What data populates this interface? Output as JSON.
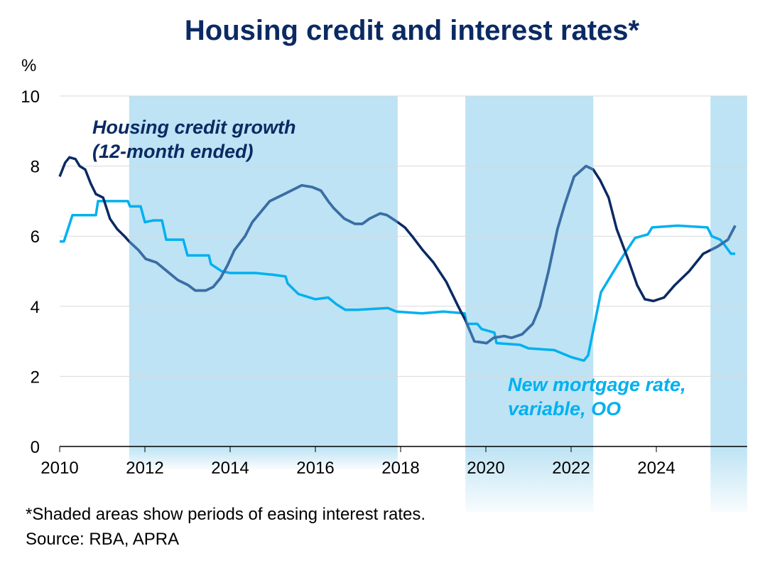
{
  "chart_data": {
    "type": "line",
    "title": "Housing credit and interest rates*",
    "ylabel": "%",
    "xlim": [
      2010,
      2026.13
    ],
    "ylim": [
      0,
      10
    ],
    "x_ticks": [
      "2010",
      "2012",
      "2014",
      "2016",
      "2018",
      "2020",
      "2022",
      "2024"
    ],
    "y_ticks": [
      "0",
      "2",
      "4",
      "6",
      "8",
      "10"
    ],
    "grid": "horizontal",
    "shaded_periods": [
      [
        2011.63,
        2017.93
      ],
      [
        2019.52,
        2022.52
      ],
      [
        2025.27,
        2026.13
      ]
    ],
    "colors": {
      "title": "#0b2a63",
      "credit": "#0b2a63",
      "credit_shaded": "#3a6ea5",
      "mortgage": "#00b0f0",
      "shade": "#bde3f4",
      "grid": "#d9d9d9"
    },
    "series": [
      {
        "name": "Housing credit growth (12-month ended)",
        "label_lines": [
          "Housing credit growth",
          "(12-month ended)"
        ],
        "points": [
          [
            2010,
            7.7
          ],
          [
            2010.13,
            8.1
          ],
          [
            2010.23,
            8.25
          ],
          [
            2010.37,
            8.2
          ],
          [
            2010.47,
            8.0
          ],
          [
            2010.6,
            7.9
          ],
          [
            2010.73,
            7.5
          ],
          [
            2010.85,
            7.2
          ],
          [
            2011.02,
            7.1
          ],
          [
            2011.18,
            6.5
          ],
          [
            2011.35,
            6.2
          ],
          [
            2011.52,
            6.0
          ],
          [
            2011.63,
            5.85
          ],
          [
            2011.85,
            5.6
          ],
          [
            2012.02,
            5.35
          ],
          [
            2012.27,
            5.25
          ],
          [
            2012.52,
            5.0
          ],
          [
            2012.77,
            4.75
          ],
          [
            2013.02,
            4.6
          ],
          [
            2013.18,
            4.45
          ],
          [
            2013.43,
            4.45
          ],
          [
            2013.6,
            4.55
          ],
          [
            2013.77,
            4.8
          ],
          [
            2013.93,
            5.15
          ],
          [
            2014.1,
            5.6
          ],
          [
            2014.35,
            6.0
          ],
          [
            2014.52,
            6.4
          ],
          [
            2014.93,
            7.0
          ],
          [
            2015.27,
            7.2
          ],
          [
            2015.68,
            7.45
          ],
          [
            2015.93,
            7.4
          ],
          [
            2016.13,
            7.3
          ],
          [
            2016.3,
            7.0
          ],
          [
            2016.43,
            6.8
          ],
          [
            2016.68,
            6.5
          ],
          [
            2016.93,
            6.35
          ],
          [
            2017.1,
            6.35
          ],
          [
            2017.27,
            6.5
          ],
          [
            2017.52,
            6.65
          ],
          [
            2017.68,
            6.6
          ],
          [
            2017.93,
            6.4
          ],
          [
            2018.1,
            6.25
          ],
          [
            2018.27,
            6.0
          ],
          [
            2018.52,
            5.6
          ],
          [
            2018.77,
            5.25
          ],
          [
            2019.07,
            4.7
          ],
          [
            2019.35,
            4.0
          ],
          [
            2019.52,
            3.6
          ],
          [
            2019.73,
            3.0
          ],
          [
            2020.02,
            2.95
          ],
          [
            2020.18,
            3.1
          ],
          [
            2020.43,
            3.15
          ],
          [
            2020.6,
            3.1
          ],
          [
            2020.85,
            3.2
          ],
          [
            2021.1,
            3.5
          ],
          [
            2021.27,
            4.0
          ],
          [
            2021.47,
            5.0
          ],
          [
            2021.68,
            6.2
          ],
          [
            2021.85,
            6.9
          ],
          [
            2022.07,
            7.7
          ],
          [
            2022.35,
            8.0
          ],
          [
            2022.52,
            7.9
          ],
          [
            2022.68,
            7.6
          ],
          [
            2022.88,
            7.1
          ],
          [
            2023.07,
            6.2
          ],
          [
            2023.35,
            5.3
          ],
          [
            2023.55,
            4.6
          ],
          [
            2023.73,
            4.2
          ],
          [
            2023.93,
            4.15
          ],
          [
            2024.18,
            4.25
          ],
          [
            2024.43,
            4.6
          ],
          [
            2024.77,
            5.0
          ],
          [
            2025.1,
            5.5
          ],
          [
            2025.43,
            5.7
          ],
          [
            2025.68,
            5.9
          ],
          [
            2025.85,
            6.3
          ]
        ]
      },
      {
        "name": "New mortgage rate, variable, OO",
        "label_lines": [
          "New mortgage rate,",
          "variable, OO"
        ],
        "points": [
          [
            2010,
            5.85
          ],
          [
            2010.1,
            5.85
          ],
          [
            2010.3,
            6.6
          ],
          [
            2010.85,
            6.6
          ],
          [
            2010.9,
            7.0
          ],
          [
            2011.6,
            7.0
          ],
          [
            2011.65,
            6.85
          ],
          [
            2011.9,
            6.85
          ],
          [
            2012.0,
            6.4
          ],
          [
            2012.2,
            6.45
          ],
          [
            2012.4,
            6.45
          ],
          [
            2012.5,
            5.9
          ],
          [
            2012.9,
            5.9
          ],
          [
            2013.0,
            5.45
          ],
          [
            2013.5,
            5.45
          ],
          [
            2013.55,
            5.2
          ],
          [
            2013.8,
            5.0
          ],
          [
            2014.0,
            4.95
          ],
          [
            2014.6,
            4.95
          ],
          [
            2015.0,
            4.9
          ],
          [
            2015.3,
            4.85
          ],
          [
            2015.35,
            4.65
          ],
          [
            2015.6,
            4.35
          ],
          [
            2016.0,
            4.2
          ],
          [
            2016.3,
            4.25
          ],
          [
            2016.5,
            4.05
          ],
          [
            2016.7,
            3.9
          ],
          [
            2017.0,
            3.9
          ],
          [
            2017.7,
            3.95
          ],
          [
            2017.9,
            3.85
          ],
          [
            2018.5,
            3.8
          ],
          [
            2019.0,
            3.85
          ],
          [
            2019.5,
            3.8
          ],
          [
            2019.55,
            3.5
          ],
          [
            2019.8,
            3.5
          ],
          [
            2019.9,
            3.35
          ],
          [
            2020.2,
            3.25
          ],
          [
            2020.25,
            2.95
          ],
          [
            2020.8,
            2.9
          ],
          [
            2021.0,
            2.8
          ],
          [
            2021.6,
            2.75
          ],
          [
            2022.0,
            2.55
          ],
          [
            2022.3,
            2.45
          ],
          [
            2022.4,
            2.6
          ],
          [
            2022.55,
            3.5
          ],
          [
            2022.7,
            4.4
          ],
          [
            2023.0,
            5.0
          ],
          [
            2023.2,
            5.4
          ],
          [
            2023.5,
            5.95
          ],
          [
            2023.8,
            6.05
          ],
          [
            2023.9,
            6.25
          ],
          [
            2024.5,
            6.3
          ],
          [
            2025.2,
            6.25
          ],
          [
            2025.3,
            6.0
          ],
          [
            2025.5,
            5.9
          ],
          [
            2025.6,
            5.75
          ],
          [
            2025.75,
            5.5
          ],
          [
            2025.85,
            5.5
          ]
        ]
      }
    ],
    "footnotes": [
      "*Shaded areas show periods of easing interest rates.",
      "Source: RBA, APRA"
    ]
  }
}
